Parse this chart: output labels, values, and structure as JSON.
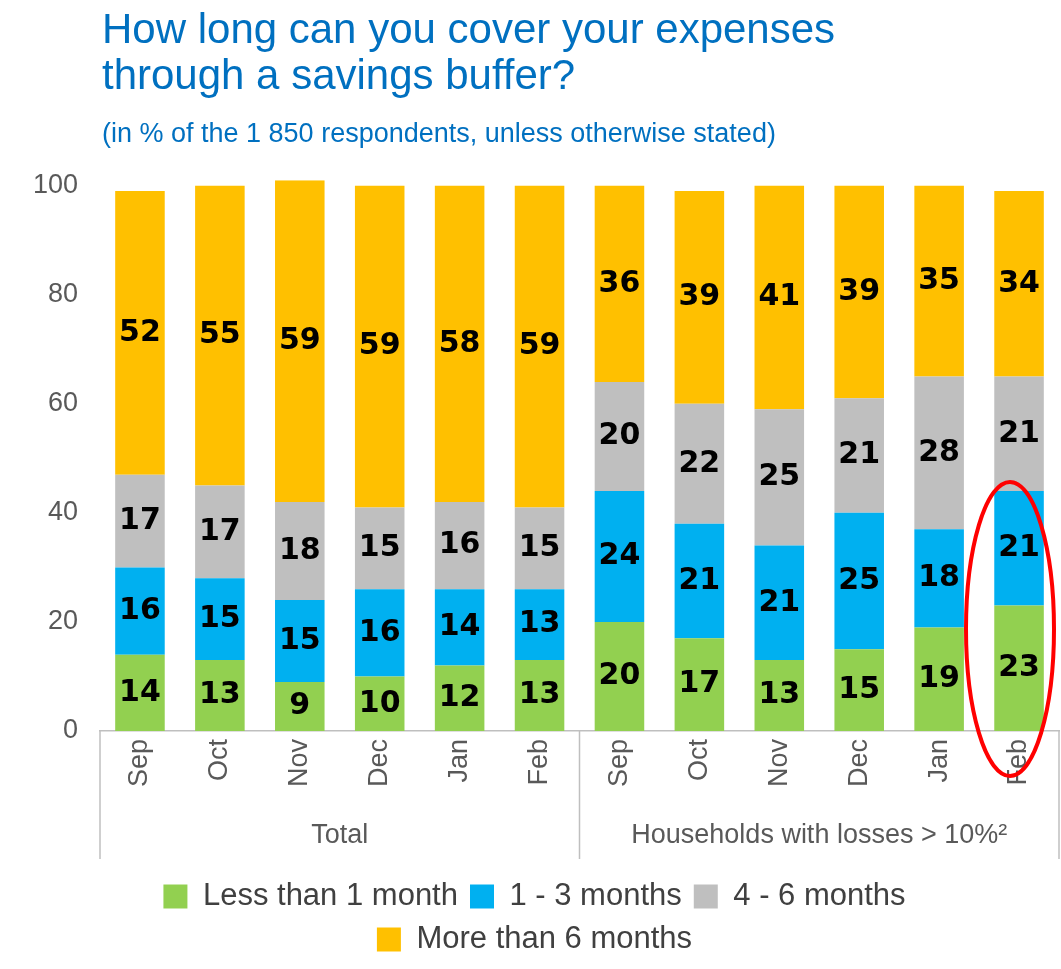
{
  "chart_data": {
    "type": "bar",
    "stacked": true,
    "title": "How long can you cover your expenses through a savings buffer?",
    "subtitle": "(in % of the 1 850 respondents, unless otherwise stated)",
    "categories": [
      "Sep",
      "Oct",
      "Nov",
      "Dec",
      "Jan",
      "Feb",
      "Sep",
      "Oct",
      "Nov",
      "Dec",
      "Jan",
      "Feb"
    ],
    "series": [
      {
        "name": "Less than 1 month",
        "color": "#92d050",
        "values": [
          14,
          13,
          9,
          10,
          12,
          13,
          20,
          17,
          13,
          15,
          19,
          23
        ]
      },
      {
        "name": "1 - 3 months",
        "color": "#00b0f0",
        "values": [
          16,
          15,
          15,
          16,
          14,
          13,
          24,
          21,
          21,
          25,
          18,
          21
        ]
      },
      {
        "name": "4 - 6 months",
        "color": "#bfbfbf",
        "values": [
          17,
          17,
          18,
          15,
          16,
          15,
          20,
          22,
          25,
          21,
          28,
          21
        ]
      },
      {
        "name": "More than 6 months",
        "color": "#ffc000",
        "values": [
          52,
          55,
          59,
          59,
          58,
          59,
          36,
          39,
          41,
          39,
          35,
          34
        ]
      }
    ],
    "ylim": [
      0,
      101
    ],
    "yticks": [
      0,
      20,
      40,
      60,
      80,
      100
    ],
    "grid": false,
    "legend": "bottom",
    "data_labels": true,
    "annotations": [
      "Total",
      "Households with losses > 10%²"
    ]
  }
}
